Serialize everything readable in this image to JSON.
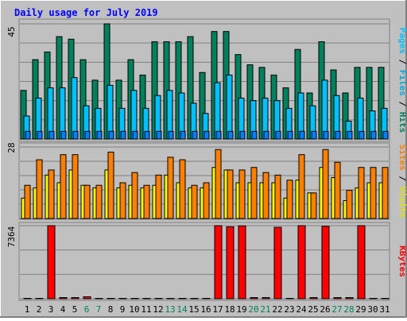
{
  "title": "Daily usage for July 2019",
  "colors": {
    "background": "#c0c0c0",
    "title": "#0000ff",
    "hits": "#00805c",
    "files": "#00c0ff",
    "pages": "#00e0ff",
    "visits": "#ffff00",
    "sites": "#ff8000",
    "kbytes": "#ff0000",
    "weekend_label": "#00805c"
  },
  "chart_data": [
    {
      "type": "bar",
      "panel": "hits-files-pages",
      "ymax_label": "45",
      "ymax": 45,
      "categories": [
        "1",
        "2",
        "3",
        "4",
        "5",
        "6",
        "7",
        "8",
        "9",
        "10",
        "11",
        "12",
        "13",
        "14",
        "15",
        "16",
        "17",
        "18",
        "19",
        "20",
        "21",
        "22",
        "23",
        "24",
        "25",
        "26",
        "27",
        "28",
        "29",
        "30",
        "31"
      ],
      "series": [
        {
          "name": "Hits",
          "values": [
            19,
            31,
            34,
            40,
            39,
            31,
            23,
            45,
            23,
            31,
            25,
            38,
            38,
            38,
            40,
            26,
            42,
            42,
            33,
            29,
            28,
            25,
            20,
            35,
            18,
            38,
            27,
            18,
            28,
            28,
            28
          ]
        },
        {
          "name": "Files",
          "values": [
            9,
            16,
            20,
            20,
            24,
            13,
            12,
            21,
            12,
            19,
            12,
            17,
            19,
            18,
            14,
            10,
            22,
            25,
            16,
            15,
            16,
            15,
            12,
            18,
            13,
            23,
            17,
            7,
            16,
            11,
            12
          ]
        },
        {
          "name": "Pages",
          "values": [
            3,
            3,
            3,
            3,
            3,
            3,
            3,
            3,
            3,
            3,
            3,
            3,
            3,
            3,
            3,
            3,
            3,
            3,
            3,
            3,
            3,
            3,
            3,
            3,
            3,
            3,
            3,
            3,
            3,
            3,
            3
          ]
        }
      ],
      "legend": [
        "Pages",
        "Files",
        "Hits"
      ]
    },
    {
      "type": "bar",
      "panel": "visits-sites",
      "ymax_label": "28",
      "ymax": 28,
      "categories": [
        "1",
        "2",
        "3",
        "4",
        "5",
        "6",
        "7",
        "8",
        "9",
        "10",
        "11",
        "12",
        "13",
        "14",
        "15",
        "16",
        "17",
        "18",
        "19",
        "20",
        "21",
        "22",
        "23",
        "24",
        "25",
        "26",
        "27",
        "28",
        "29",
        "30",
        "31"
      ],
      "series": [
        {
          "name": "Visits",
          "values": [
            8,
            12,
            17,
            14,
            19,
            13,
            12,
            19,
            12,
            13,
            12,
            13,
            17,
            14,
            12,
            12,
            20,
            19,
            14,
            14,
            14,
            14,
            8,
            15,
            10,
            20,
            16,
            7,
            12,
            14,
            14
          ]
        },
        {
          "name": "Sites",
          "values": [
            13,
            23,
            19,
            25,
            25,
            13,
            13,
            26,
            14,
            18,
            13,
            17,
            24,
            23,
            13,
            14,
            27,
            19,
            19,
            20,
            18,
            17,
            15,
            25,
            10,
            27,
            22,
            11,
            20,
            20,
            20
          ]
        }
      ],
      "legend": [
        "Sites",
        "Visits"
      ]
    },
    {
      "type": "bar",
      "panel": "kbytes",
      "ymax_label": "7364",
      "ymax": 7364,
      "categories": [
        "1",
        "2",
        "3",
        "4",
        "5",
        "6",
        "7",
        "8",
        "9",
        "10",
        "11",
        "12",
        "13",
        "14",
        "15",
        "16",
        "17",
        "18",
        "19",
        "20",
        "21",
        "22",
        "23",
        "24",
        "25",
        "26",
        "27",
        "28",
        "29",
        "30",
        "31"
      ],
      "series": [
        {
          "name": "KBytes",
          "values": [
            0,
            0,
            7364,
            120,
            120,
            200,
            0,
            0,
            0,
            0,
            0,
            0,
            0,
            0,
            0,
            0,
            7364,
            7250,
            7340,
            120,
            120,
            7200,
            0,
            7364,
            120,
            7300,
            120,
            120,
            7364,
            0,
            0
          ]
        }
      ],
      "legend": [
        "KBytes"
      ]
    }
  ],
  "day_labels": [
    "1",
    "2",
    "3",
    "4",
    "5",
    "6",
    "7",
    "8",
    "9",
    "10",
    "11",
    "12",
    "13",
    "14",
    "15",
    "16",
    "17",
    "18",
    "19",
    "20",
    "21",
    "22",
    "23",
    "24",
    "25",
    "26",
    "27",
    "28",
    "29",
    "30",
    "31"
  ],
  "weekend_days": [
    6,
    7,
    13,
    14,
    20,
    21,
    27,
    28
  ]
}
